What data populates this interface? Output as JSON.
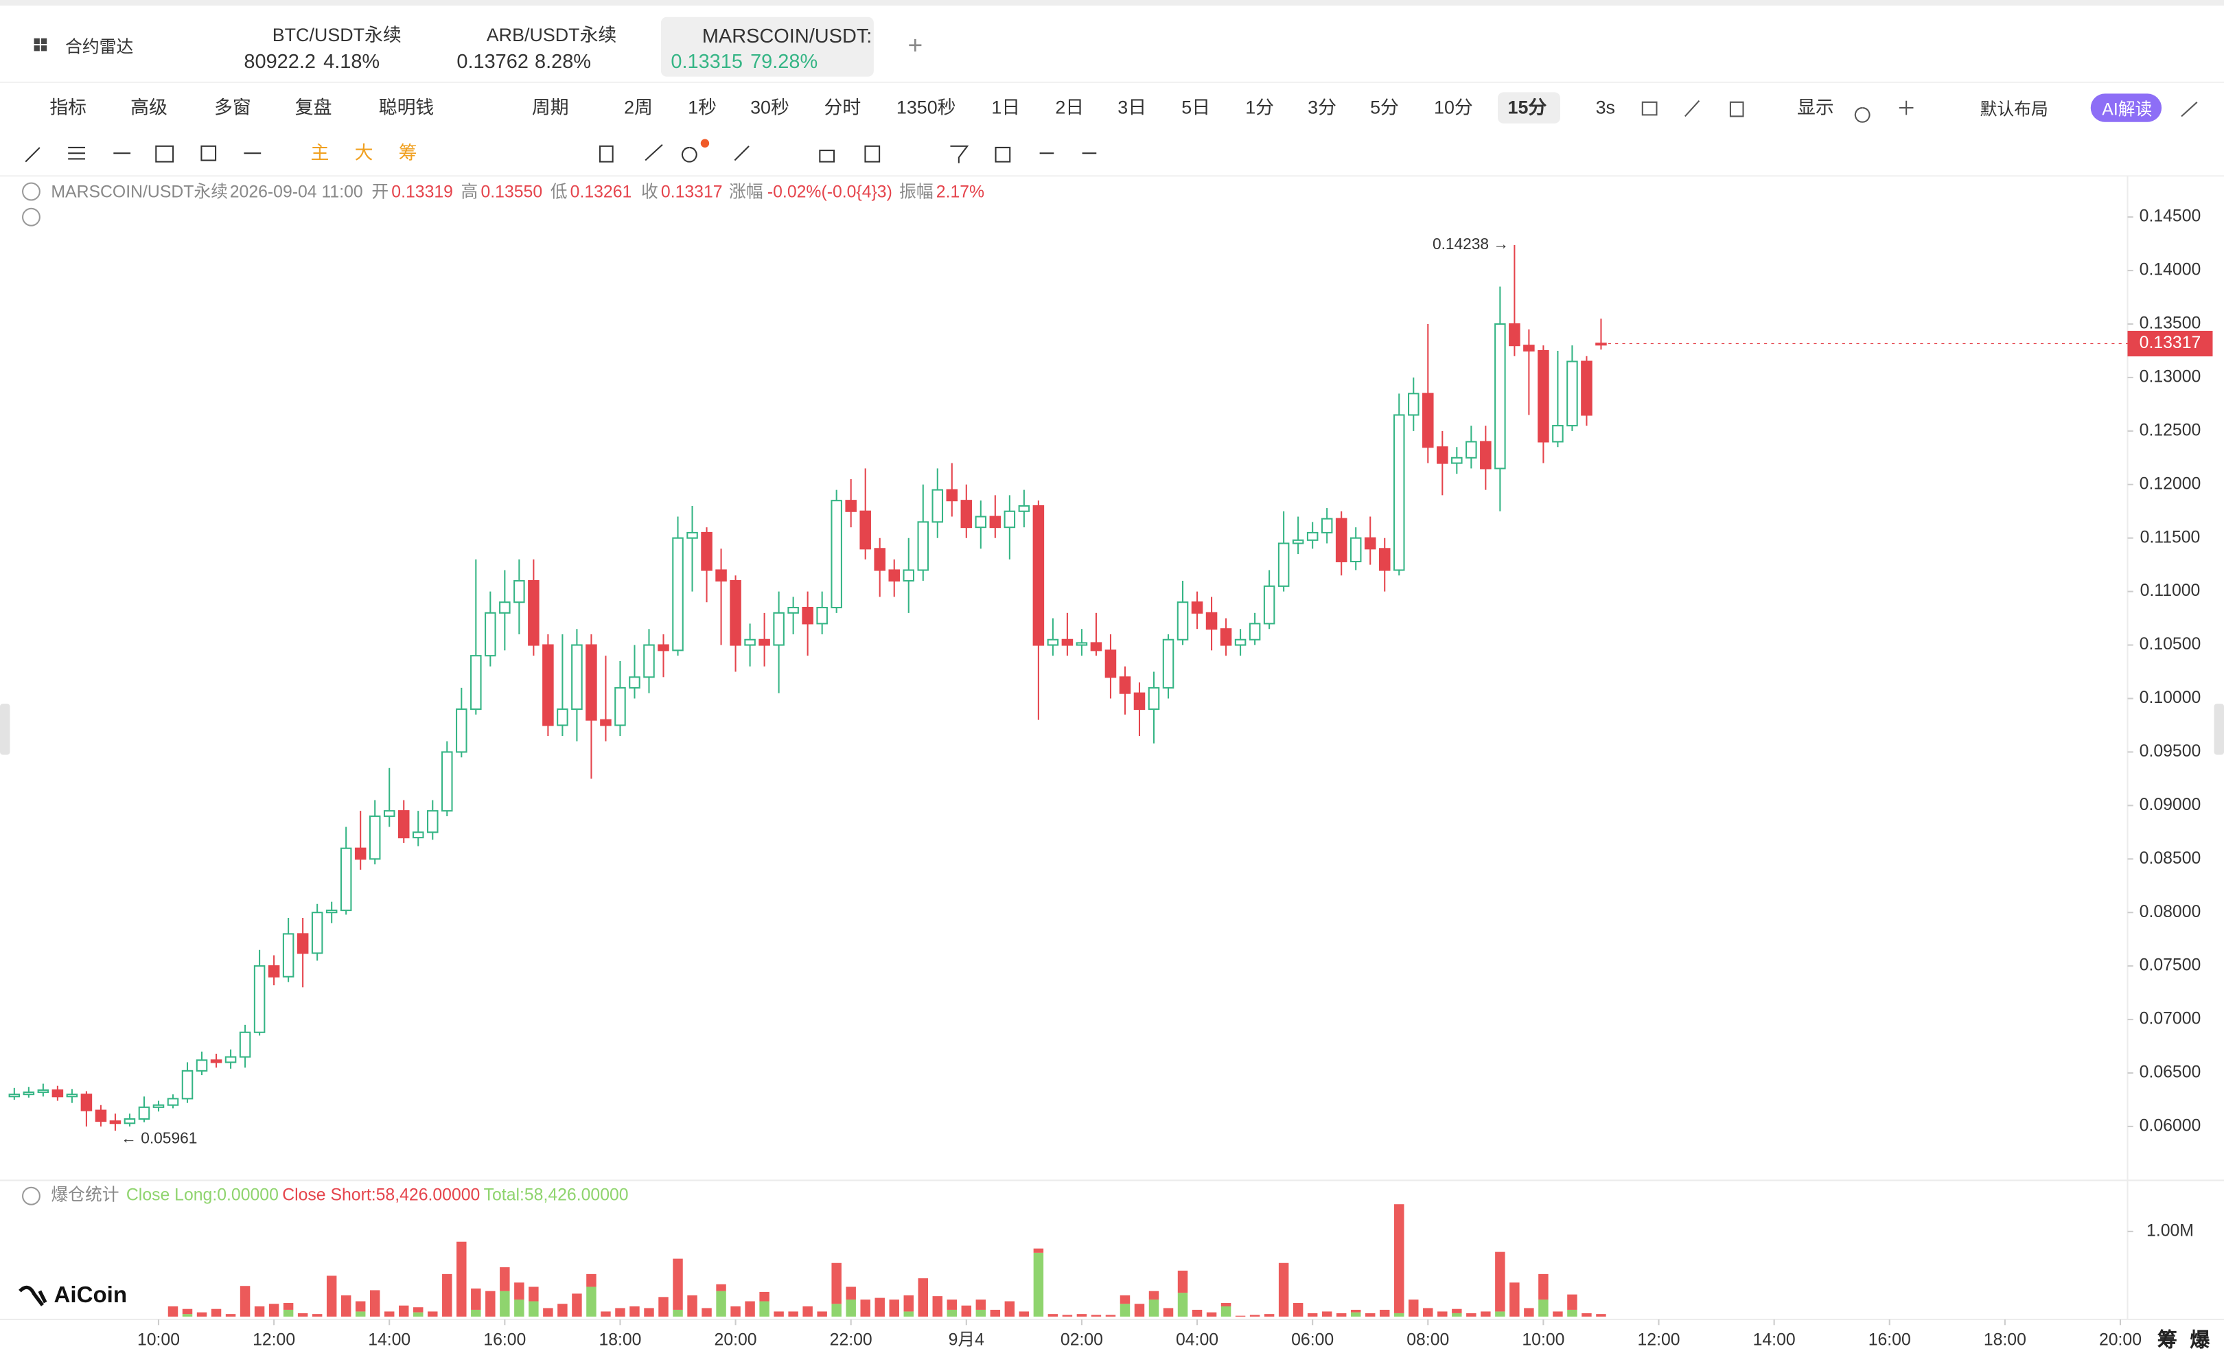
{
  "header": {
    "radar": "合约雷达",
    "tabs": [
      {
        "symbol": "BTC/USDT永续",
        "price": "80922.2",
        "change": "4.18%"
      },
      {
        "symbol": "ARB/USDT永续",
        "price": "0.13762",
        "change": "8.28%"
      },
      {
        "symbol": "MARSCOIN/USDT:",
        "price": "0.13315",
        "change": "79.28%"
      }
    ],
    "active_tab": 2,
    "add": "+"
  },
  "toolbar": {
    "left": [
      "指标",
      "高级",
      "多窗",
      "复盘",
      "聪明钱"
    ],
    "period": "周期",
    "intervals": [
      "2周",
      "1秒",
      "30秒",
      "分时",
      "1350秒",
      "1日",
      "2日",
      "3日",
      "5日",
      "1分",
      "3分",
      "5分",
      "10分",
      "15分"
    ],
    "active_interval": 13,
    "refresh": "3s",
    "display": "显示",
    "layout": "默认布局",
    "ai": "AI解读"
  },
  "drawing_tools": {
    "labels": [
      "主",
      "大",
      "筹"
    ]
  },
  "legend": {
    "symbol": "MARSCOIN/USDT永续",
    "time": "2026-09-04 11:00",
    "open_label": "开",
    "open": "0.13319",
    "high_label": "高",
    "high": "0.13550",
    "low_label": "低",
    "low": "0.13261",
    "close_label": "收",
    "close": "0.13317",
    "change_label": "涨幅",
    "change": "-0.02%(-0.0{4}3)",
    "amplitude_label": "振幅",
    "amplitude": "2.17%"
  },
  "indicator": {
    "name": "爆仓统计",
    "long": "Close Long:0.00000",
    "short": "Close Short:58,426.00000",
    "total": "Total:58,426.00000"
  },
  "logo": "AiCoin",
  "corner": [
    "筹",
    "爆"
  ],
  "chart_data": [
    {
      "type": "candlestick",
      "up_color": "#35b585",
      "down_color": "#e5444c",
      "hollow_up": true,
      "xlim": [
        -0.5,
        146.5
      ],
      "ylim": [
        0.05496,
        0.14871
      ],
      "yticks": [
        {
          "value": 0.145,
          "label": "0.14500"
        },
        {
          "value": 0.14,
          "label": "0.14000"
        },
        {
          "value": 0.135,
          "label": "0.13500"
        },
        {
          "value": 0.13,
          "label": "0.13000"
        },
        {
          "value": 0.125,
          "label": "0.12500"
        },
        {
          "value": 0.12,
          "label": "0.12000"
        },
        {
          "value": 0.115,
          "label": "0.11500"
        },
        {
          "value": 0.11,
          "label": "0.11000"
        },
        {
          "value": 0.105,
          "label": "0.10500"
        },
        {
          "value": 0.1,
          "label": "0.10000"
        },
        {
          "value": 0.095,
          "label": "0.09500"
        },
        {
          "value": 0.09,
          "label": "0.09000"
        },
        {
          "value": 0.085,
          "label": "0.08500"
        },
        {
          "value": 0.08,
          "label": "0.08000"
        },
        {
          "value": 0.075,
          "label": "0.07500"
        },
        {
          "value": 0.07,
          "label": "0.07000"
        },
        {
          "value": 0.065,
          "label": "0.06500"
        },
        {
          "value": 0.06,
          "label": "0.06000"
        }
      ],
      "max_label": "0.14238 →",
      "min_label": "← 0.05961",
      "last_price_label": "0.13317",
      "open": [
        0.0628,
        0.063,
        0.0632,
        0.0634,
        0.0628,
        0.063,
        0.0615,
        0.0605,
        0.0603,
        0.0607,
        0.0618,
        0.062,
        0.0626,
        0.0652,
        0.0662,
        0.066,
        0.0665,
        0.0688,
        0.075,
        0.074,
        0.078,
        0.0762,
        0.08,
        0.0802,
        0.086,
        0.085,
        0.089,
        0.0895,
        0.087,
        0.0875,
        0.0895,
        0.095,
        0.099,
        0.104,
        0.108,
        0.109,
        0.111,
        0.105,
        0.0975,
        0.099,
        0.105,
        0.098,
        0.0975,
        0.101,
        0.102,
        0.105,
        0.1045,
        0.115,
        0.1155,
        0.112,
        0.111,
        0.105,
        0.1055,
        0.105,
        0.108,
        0.1085,
        0.107,
        0.1085,
        0.1185,
        0.1175,
        0.114,
        0.112,
        0.111,
        0.112,
        0.1165,
        0.1195,
        0.1185,
        0.116,
        0.117,
        0.116,
        0.1175,
        0.118,
        0.105,
        0.1055,
        0.105,
        0.1052,
        0.1045,
        0.102,
        0.1005,
        0.099,
        0.101,
        0.1055,
        0.109,
        0.108,
        0.1065,
        0.105,
        0.1055,
        0.107,
        0.1105,
        0.1145,
        0.1148,
        0.1155,
        0.1168,
        0.1128,
        0.115,
        0.114,
        0.112,
        0.1265,
        0.1285,
        0.1235,
        0.122,
        0.1225,
        0.124,
        0.1215,
        0.135,
        0.133,
        0.1325,
        0.124,
        0.1255,
        0.1315,
        0.13319
      ],
      "high": [
        0.0636,
        0.0637,
        0.064,
        0.0638,
        0.0635,
        0.0633,
        0.062,
        0.0612,
        0.0612,
        0.0628,
        0.0624,
        0.063,
        0.066,
        0.067,
        0.0668,
        0.0672,
        0.0695,
        0.0765,
        0.076,
        0.0795,
        0.0795,
        0.0808,
        0.081,
        0.088,
        0.0895,
        0.0905,
        0.0935,
        0.0905,
        0.0895,
        0.0905,
        0.096,
        0.101,
        0.113,
        0.11,
        0.112,
        0.113,
        0.113,
        0.106,
        0.106,
        0.1065,
        0.106,
        0.104,
        0.1035,
        0.105,
        0.1065,
        0.106,
        0.117,
        0.118,
        0.116,
        0.114,
        0.1115,
        0.107,
        0.108,
        0.11,
        0.1095,
        0.11,
        0.11,
        0.1195,
        0.1205,
        0.1215,
        0.115,
        0.113,
        0.115,
        0.12,
        0.1215,
        0.122,
        0.12,
        0.1185,
        0.119,
        0.119,
        0.1195,
        0.1185,
        0.1075,
        0.108,
        0.1065,
        0.108,
        0.106,
        0.103,
        0.1015,
        0.1025,
        0.106,
        0.111,
        0.11,
        0.1095,
        0.1075,
        0.1065,
        0.108,
        0.112,
        0.1175,
        0.117,
        0.1165,
        0.1178,
        0.1175,
        0.116,
        0.117,
        0.115,
        0.1285,
        0.13,
        0.135,
        0.125,
        0.1235,
        0.1255,
        0.1255,
        0.1385,
        0.14238,
        0.1345,
        0.133,
        0.1325,
        0.133,
        0.132,
        0.1355
      ],
      "low": [
        0.0625,
        0.0627,
        0.0628,
        0.0624,
        0.0622,
        0.06,
        0.06,
        0.05961,
        0.06,
        0.0604,
        0.0614,
        0.0617,
        0.0622,
        0.0648,
        0.0655,
        0.0654,
        0.0655,
        0.0685,
        0.0732,
        0.0735,
        0.073,
        0.0755,
        0.079,
        0.0798,
        0.084,
        0.0845,
        0.088,
        0.0865,
        0.0862,
        0.0868,
        0.089,
        0.0945,
        0.0985,
        0.103,
        0.1045,
        0.106,
        0.104,
        0.0965,
        0.0965,
        0.096,
        0.0925,
        0.096,
        0.0965,
        0.1,
        0.1005,
        0.102,
        0.104,
        0.11,
        0.109,
        0.105,
        0.1025,
        0.103,
        0.103,
        0.1005,
        0.106,
        0.104,
        0.106,
        0.108,
        0.116,
        0.113,
        0.1095,
        0.1095,
        0.108,
        0.111,
        0.115,
        0.117,
        0.115,
        0.114,
        0.115,
        0.113,
        0.116,
        0.098,
        0.104,
        0.104,
        0.104,
        0.104,
        0.1,
        0.0985,
        0.0965,
        0.0958,
        0.1,
        0.105,
        0.1065,
        0.1045,
        0.104,
        0.104,
        0.105,
        0.1065,
        0.11,
        0.1135,
        0.114,
        0.1145,
        0.1115,
        0.112,
        0.1125,
        0.11,
        0.1115,
        0.125,
        0.122,
        0.119,
        0.121,
        0.1215,
        0.1195,
        0.1175,
        0.132,
        0.1265,
        0.122,
        0.1235,
        0.125,
        0.1255,
        0.13261
      ],
      "close": [
        0.063,
        0.0632,
        0.0634,
        0.0628,
        0.063,
        0.0615,
        0.0605,
        0.0603,
        0.0607,
        0.0618,
        0.062,
        0.0626,
        0.0652,
        0.0662,
        0.066,
        0.0665,
        0.0688,
        0.075,
        0.074,
        0.078,
        0.0762,
        0.08,
        0.0802,
        0.086,
        0.085,
        0.089,
        0.0895,
        0.087,
        0.0875,
        0.0895,
        0.095,
        0.099,
        0.104,
        0.108,
        0.109,
        0.111,
        0.105,
        0.0975,
        0.099,
        0.105,
        0.098,
        0.0975,
        0.101,
        0.102,
        0.105,
        0.1045,
        0.115,
        0.1155,
        0.112,
        0.111,
        0.105,
        0.1055,
        0.105,
        0.108,
        0.1085,
        0.107,
        0.1085,
        0.1185,
        0.1175,
        0.114,
        0.112,
        0.111,
        0.112,
        0.1165,
        0.1195,
        0.1185,
        0.116,
        0.117,
        0.116,
        0.1175,
        0.118,
        0.105,
        0.1055,
        0.105,
        0.1052,
        0.1045,
        0.102,
        0.1005,
        0.099,
        0.101,
        0.1055,
        0.109,
        0.108,
        0.1065,
        0.105,
        0.1055,
        0.107,
        0.1105,
        0.1145,
        0.1148,
        0.1155,
        0.1168,
        0.1128,
        0.115,
        0.114,
        0.112,
        0.1265,
        0.1285,
        0.1235,
        0.122,
        0.1225,
        0.124,
        0.1215,
        0.135,
        0.133,
        0.1325,
        0.124,
        0.1255,
        0.1315,
        0.1265,
        0.13317
      ]
    },
    {
      "type": "stacked_bar",
      "xlim": [
        -0.5,
        146.5
      ],
      "ylim": [
        0,
        1550000
      ],
      "yticks": [
        {
          "value": 1000000,
          "label": "1.00M"
        }
      ],
      "xticks": [
        {
          "value": 10,
          "label": "10:00"
        },
        {
          "value": 18,
          "label": "12:00"
        },
        {
          "value": 26,
          "label": "14:00"
        },
        {
          "value": 34,
          "label": "16:00"
        },
        {
          "value": 42,
          "label": "18:00"
        },
        {
          "value": 50,
          "label": "20:00"
        },
        {
          "value": 58,
          "label": "22:00"
        },
        {
          "value": 66,
          "label": "9月4"
        },
        {
          "value": 74,
          "label": "02:00"
        },
        {
          "value": 82,
          "label": "04:00"
        },
        {
          "value": 90,
          "label": "06:00"
        },
        {
          "value": 98,
          "label": "08:00"
        },
        {
          "value": 106,
          "label": "10:00"
        },
        {
          "value": 114,
          "label": "12:00"
        },
        {
          "value": 122,
          "label": "14:00"
        },
        {
          "value": 130,
          "label": "16:00"
        },
        {
          "value": 138,
          "label": "18:00"
        },
        {
          "value": 146,
          "label": "20:00"
        }
      ],
      "series": [
        {
          "color": "#8fd46e",
          "values": [
            0,
            0,
            0,
            0,
            0,
            0,
            0,
            0,
            0,
            0,
            0,
            0,
            30000,
            0,
            0,
            0,
            0,
            0,
            0,
            80000,
            0,
            0,
            0,
            0,
            60000,
            0,
            0,
            0,
            50000,
            0,
            0,
            0,
            80000,
            0,
            300000,
            200000,
            180000,
            0,
            0,
            0,
            350000,
            0,
            0,
            0,
            0,
            0,
            80000,
            0,
            0,
            300000,
            0,
            0,
            180000,
            0,
            0,
            0,
            0,
            150000,
            200000,
            0,
            0,
            0,
            60000,
            0,
            0,
            80000,
            0,
            80000,
            0,
            0,
            0,
            750000,
            0,
            0,
            0,
            0,
            0,
            150000,
            0,
            200000,
            0,
            280000,
            0,
            0,
            120000,
            0,
            0,
            0,
            0,
            0,
            0,
            0,
            0,
            50000,
            0,
            0,
            40000,
            0,
            0,
            0,
            40000,
            0,
            0,
            60000,
            0,
            0,
            200000,
            0,
            80000,
            0,
            0
          ]
        },
        {
          "color": "#ec5a5a",
          "values": [
            0,
            0,
            0,
            0,
            0,
            0,
            0,
            0,
            0,
            0,
            0,
            120000,
            60000,
            50000,
            90000,
            30000,
            360000,
            120000,
            150000,
            80000,
            40000,
            30000,
            480000,
            250000,
            120000,
            310000,
            60000,
            130000,
            60000,
            60000,
            500000,
            880000,
            250000,
            300000,
            280000,
            200000,
            170000,
            100000,
            150000,
            270000,
            150000,
            60000,
            100000,
            120000,
            100000,
            230000,
            600000,
            250000,
            100000,
            80000,
            120000,
            180000,
            110000,
            60000,
            60000,
            120000,
            60000,
            480000,
            150000,
            200000,
            220000,
            200000,
            190000,
            450000,
            240000,
            120000,
            130000,
            120000,
            80000,
            180000,
            60000,
            50000,
            30000,
            20000,
            30000,
            20000,
            20000,
            100000,
            150000,
            100000,
            100000,
            260000,
            80000,
            50000,
            40000,
            10000,
            20000,
            30000,
            630000,
            160000,
            40000,
            60000,
            40000,
            30000,
            40000,
            80000,
            1280000,
            200000,
            100000,
            60000,
            50000,
            40000,
            60000,
            700000,
            400000,
            100000,
            300000,
            60000,
            180000,
            40000,
            30000
          ]
        }
      ]
    }
  ]
}
